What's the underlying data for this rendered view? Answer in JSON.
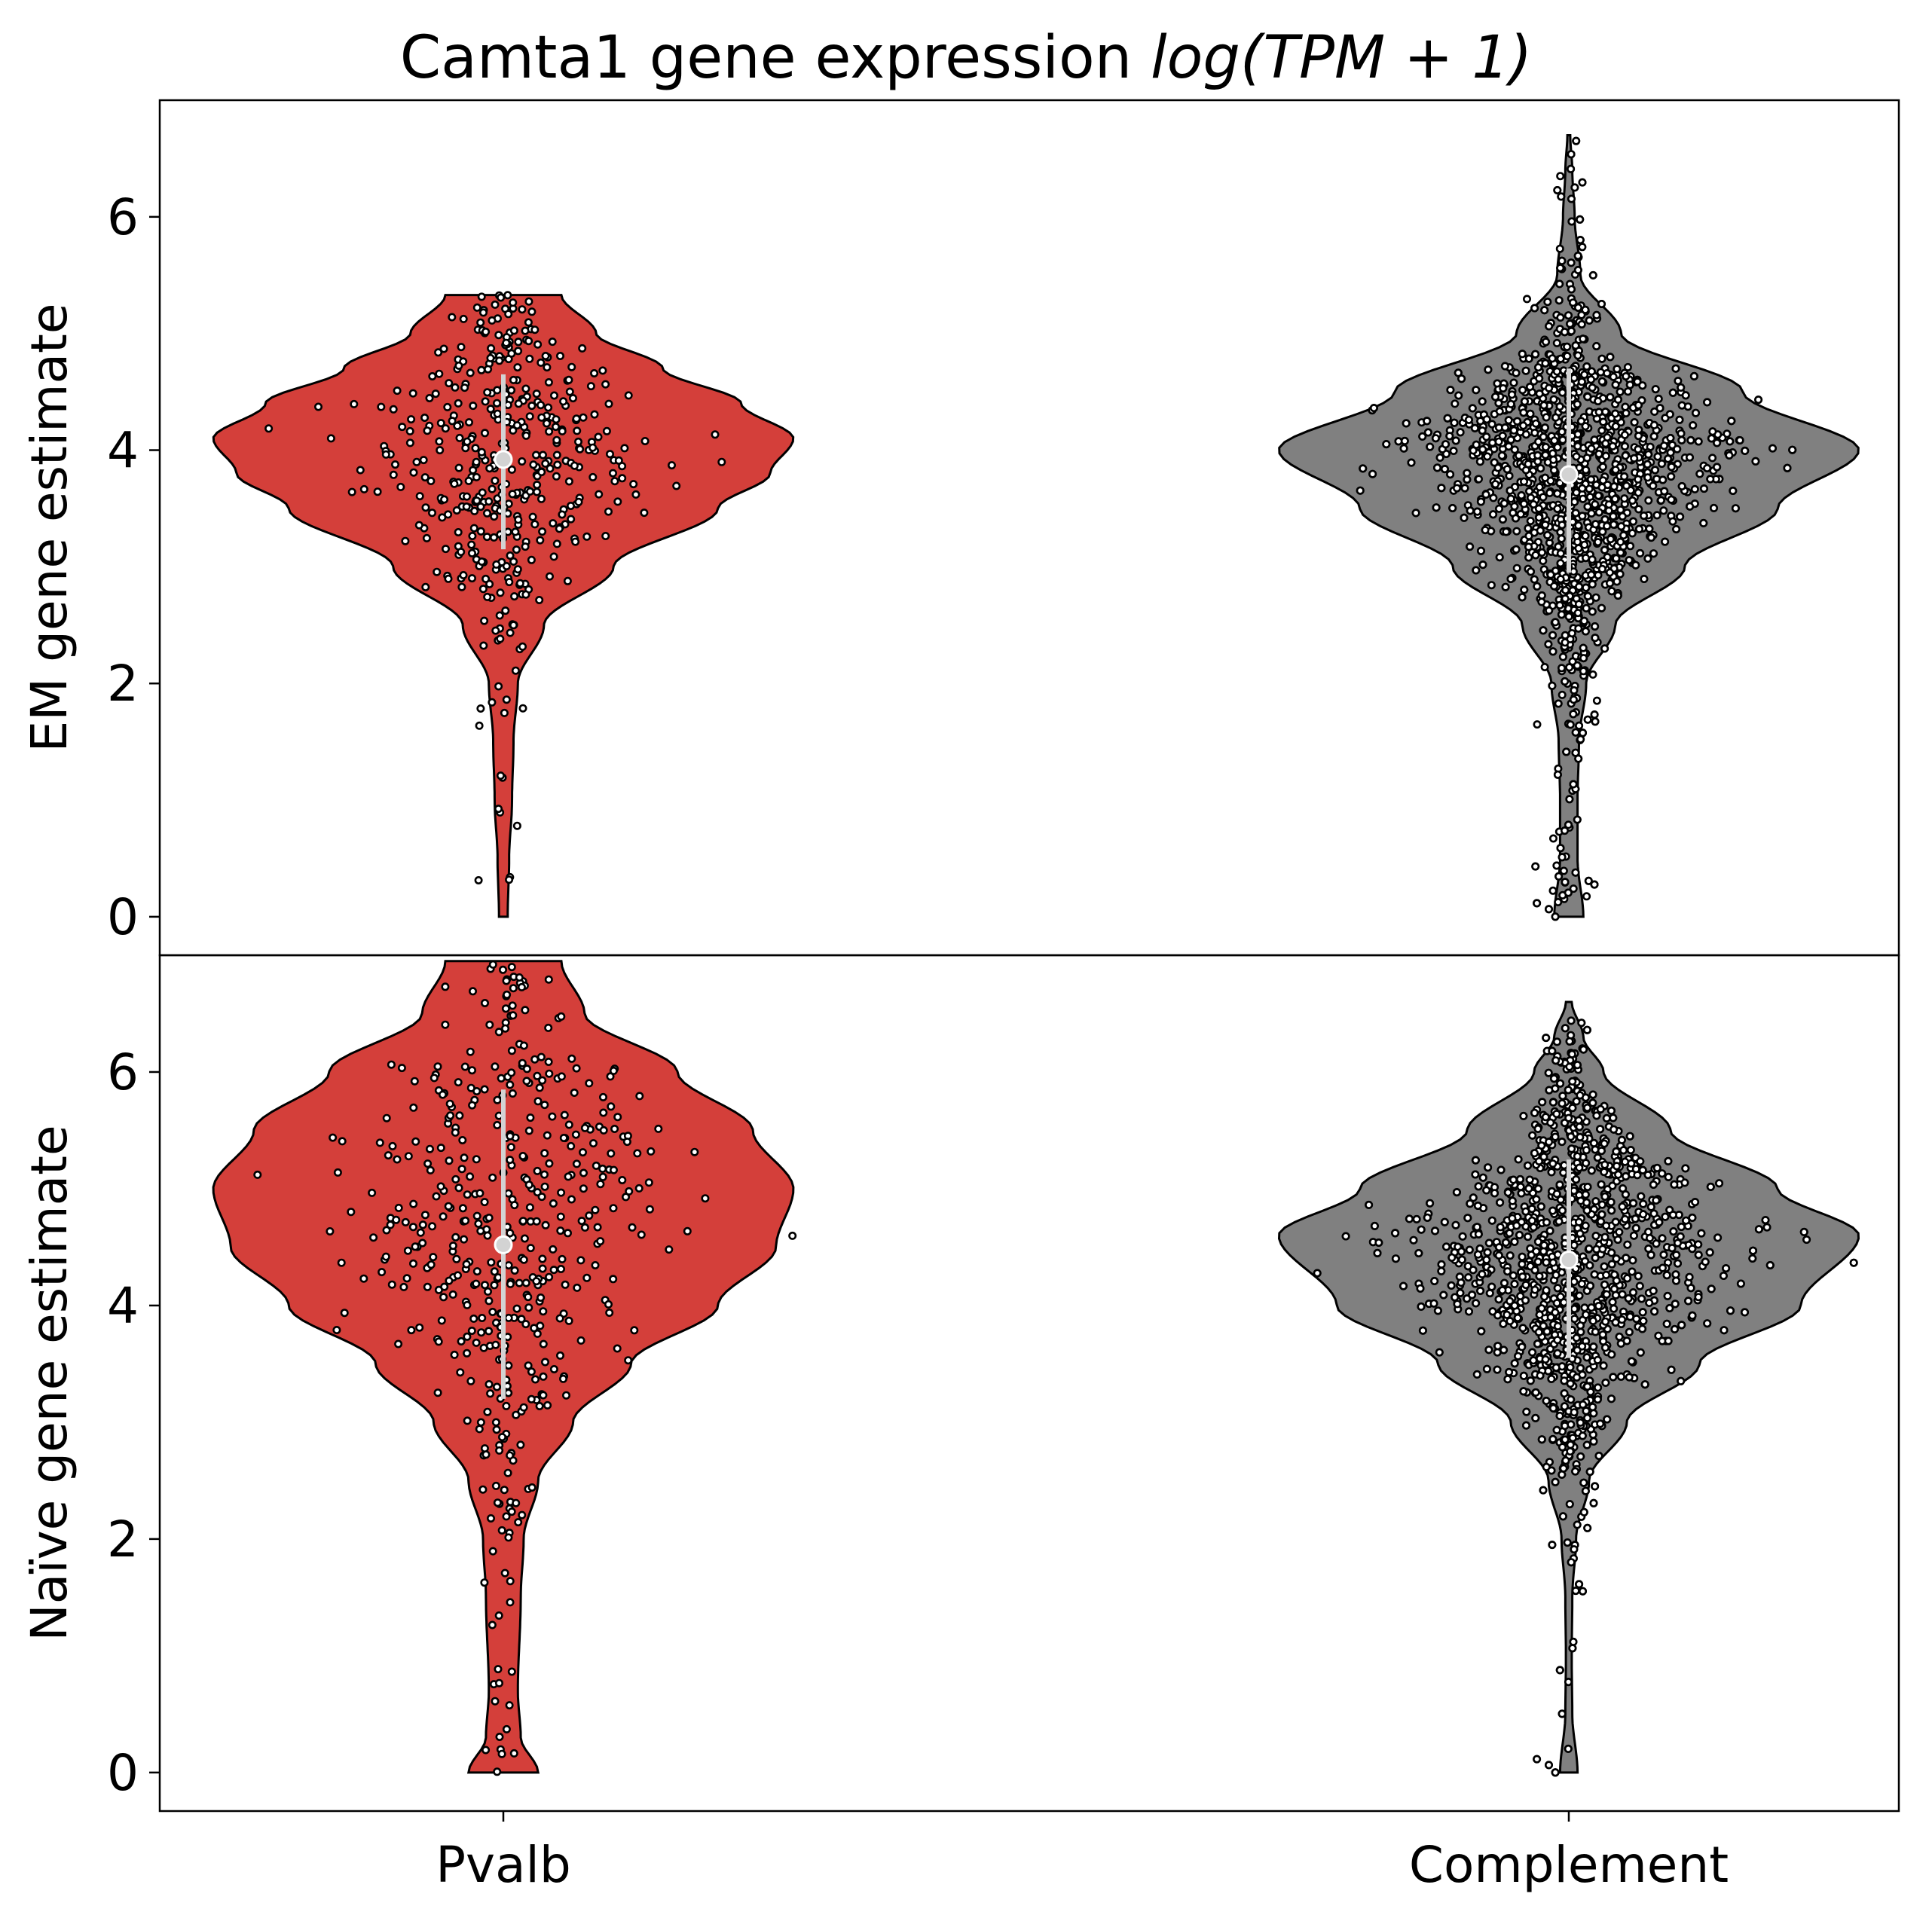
{
  "chart_data": {
    "type": "violin",
    "title": "Camta1 gene expression log(TPM + 1)",
    "title_parts": {
      "prefix": "Camta1 gene expression ",
      "math": "log(TPM + 1)"
    },
    "categories": [
      "Pvalb",
      "Complement"
    ],
    "colors": {
      "Pvalb": "#d43f3a",
      "Complement": "#808080"
    },
    "grid": false,
    "panels": [
      {
        "ylabel": "EM gene estimate",
        "ylim": [
          -0.33,
          7.0
        ],
        "yticks": [
          0,
          2,
          4,
          6
        ],
        "groups": [
          {
            "name": "Pvalb",
            "median": 3.92,
            "q1": 3.15,
            "q3": 4.65,
            "max": 5.33,
            "density": [
              [
                0.0,
                0.015
              ],
              [
                0.5,
                0.02
              ],
              [
                1.0,
                0.03
              ],
              [
                1.5,
                0.035
              ],
              [
                2.0,
                0.05
              ],
              [
                2.5,
                0.14
              ],
              [
                3.0,
                0.38
              ],
              [
                3.5,
                0.74
              ],
              [
                3.8,
                0.92
              ],
              [
                4.1,
                1.0
              ],
              [
                4.4,
                0.82
              ],
              [
                4.7,
                0.55
              ],
              [
                5.0,
                0.32
              ],
              [
                5.33,
                0.2
              ]
            ],
            "n_points": 440
          },
          {
            "name": "Complement",
            "median": 3.79,
            "q1": 2.95,
            "q3": 4.7,
            "max": 6.7,
            "density": [
              [
                0.0,
                0.05
              ],
              [
                0.5,
                0.03
              ],
              [
                1.0,
                0.03
              ],
              [
                1.5,
                0.035
              ],
              [
                2.0,
                0.06
              ],
              [
                2.5,
                0.16
              ],
              [
                3.0,
                0.4
              ],
              [
                3.5,
                0.72
              ],
              [
                4.0,
                1.0
              ],
              [
                4.5,
                0.6
              ],
              [
                5.0,
                0.18
              ],
              [
                5.5,
                0.04
              ],
              [
                6.0,
                0.02
              ],
              [
                6.4,
                0.012
              ],
              [
                6.7,
                0.005
              ]
            ],
            "n_points": 2600
          }
        ]
      },
      {
        "ylabel": "Naïve gene estimate",
        "ylim": [
          -0.33,
          7.0
        ],
        "yticks": [
          0,
          2,
          4,
          6
        ],
        "groups": [
          {
            "name": "Pvalb",
            "median": 4.52,
            "q1": 3.2,
            "q3": 5.85,
            "max": 6.95,
            "density": [
              [
                0.0,
                0.12
              ],
              [
                0.3,
                0.06
              ],
              [
                0.7,
                0.05
              ],
              [
                1.5,
                0.06
              ],
              [
                2.0,
                0.07
              ],
              [
                2.5,
                0.12
              ],
              [
                3.0,
                0.24
              ],
              [
                3.5,
                0.44
              ],
              [
                4.0,
                0.74
              ],
              [
                4.5,
                0.94
              ],
              [
                5.0,
                1.0
              ],
              [
                5.5,
                0.86
              ],
              [
                6.0,
                0.6
              ],
              [
                6.5,
                0.28
              ],
              [
                6.95,
                0.2
              ]
            ],
            "n_points": 480
          },
          {
            "name": "Complement",
            "median": 4.39,
            "q1": 3.55,
            "q3": 5.25,
            "max": 6.6,
            "density": [
              [
                0.0,
                0.03
              ],
              [
                0.5,
                0.012
              ],
              [
                1.0,
                0.01
              ],
              [
                1.5,
                0.012
              ],
              [
                2.0,
                0.025
              ],
              [
                2.5,
                0.07
              ],
              [
                3.0,
                0.2
              ],
              [
                3.5,
                0.45
              ],
              [
                4.0,
                0.8
              ],
              [
                4.6,
                1.0
              ],
              [
                5.0,
                0.72
              ],
              [
                5.5,
                0.35
              ],
              [
                6.0,
                0.12
              ],
              [
                6.3,
                0.05
              ],
              [
                6.6,
                0.01
              ]
            ],
            "n_points": 2600
          }
        ]
      }
    ]
  }
}
